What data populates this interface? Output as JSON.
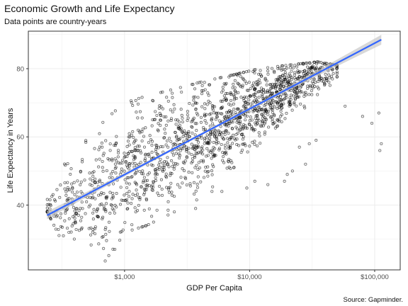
{
  "chart_data": {
    "type": "scatter",
    "title": "Economic Growth and Life Expectancy",
    "subtitle": "Data points are country-years",
    "xlabel": "GDP Per Capita",
    "ylabel": "Life Expectancy in Years",
    "caption": "Source: Gapminder.",
    "x_scale": "log10",
    "xlim": [
      170,
      160000
    ],
    "ylim": [
      21,
      91
    ],
    "x_ticks": [
      {
        "value": 1000,
        "label": "$1,000"
      },
      {
        "value": 10000,
        "label": "$10,000"
      },
      {
        "value": 100000,
        "label": "$100,000"
      }
    ],
    "y_ticks": [
      {
        "value": 40,
        "label": "40"
      },
      {
        "value": 60,
        "label": "60"
      },
      {
        "value": 80,
        "label": "80"
      }
    ],
    "grid": true,
    "point_count": 1704,
    "trend_line": {
      "method": "linear fit on log10(gdp)",
      "from": {
        "x": 240,
        "y": 37
      },
      "to": {
        "x": 113000,
        "y": 88.5
      },
      "color": "#3366ff",
      "band_color": "#c8c8c8"
    },
    "point_color": "#000000",
    "cloud_shape": [
      {
        "x": 241,
        "lo": 38,
        "hi": 46
      },
      {
        "x": 300,
        "lo": 31,
        "hi": 50
      },
      {
        "x": 400,
        "lo": 30,
        "hi": 56
      },
      {
        "x": 550,
        "lo": 28,
        "hi": 62
      },
      {
        "x": 750,
        "lo": 24,
        "hi": 66
      },
      {
        "x": 1000,
        "lo": 32,
        "hi": 70
      },
      {
        "x": 1500,
        "lo": 34,
        "hi": 72
      },
      {
        "x": 2500,
        "lo": 38,
        "hi": 74
      },
      {
        "x": 4000,
        "lo": 42,
        "hi": 76
      },
      {
        "x": 7000,
        "lo": 50,
        "hi": 78
      },
      {
        "x": 12000,
        "lo": 58,
        "hi": 80
      },
      {
        "x": 20000,
        "lo": 66,
        "hi": 81
      },
      {
        "x": 35000,
        "lo": 70,
        "hi": 82
      },
      {
        "x": 50000,
        "lo": 72,
        "hi": 81
      }
    ],
    "outliers": [
      {
        "x": 58000,
        "y": 69
      },
      {
        "x": 80000,
        "y": 66
      },
      {
        "x": 95000,
        "y": 64
      },
      {
        "x": 108000,
        "y": 67
      },
      {
        "x": 113000,
        "y": 58
      },
      {
        "x": 110000,
        "y": 56
      },
      {
        "x": 34000,
        "y": 59
      },
      {
        "x": 30000,
        "y": 58
      },
      {
        "x": 25000,
        "y": 57
      },
      {
        "x": 28000,
        "y": 52
      },
      {
        "x": 22000,
        "y": 50
      },
      {
        "x": 20000,
        "y": 49
      },
      {
        "x": 19000,
        "y": 47
      },
      {
        "x": 14000,
        "y": 46
      },
      {
        "x": 11000,
        "y": 47
      },
      {
        "x": 9500,
        "y": 45
      },
      {
        "x": 6000,
        "y": 44
      },
      {
        "x": 5000,
        "y": 44
      },
      {
        "x": 3700,
        "y": 39
      },
      {
        "x": 2500,
        "y": 38
      },
      {
        "x": 700,
        "y": 23.6
      }
    ]
  }
}
